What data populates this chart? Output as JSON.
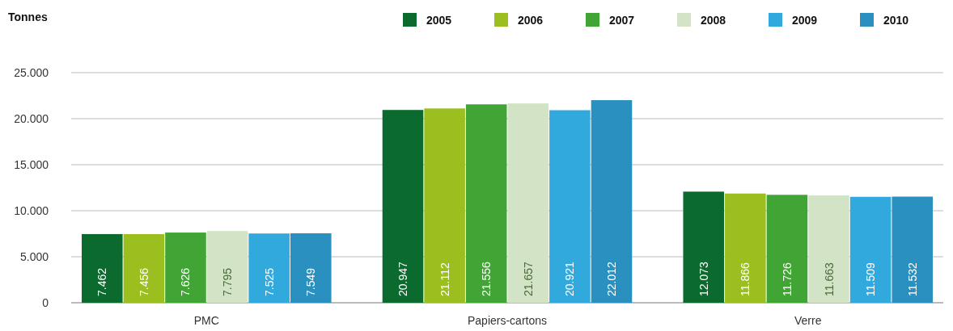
{
  "chart_data": {
    "type": "bar",
    "ylabel": "Tonnes",
    "categories": [
      "PMC",
      "Papiers-cartons",
      "Verre"
    ],
    "series": [
      {
        "name": "2005",
        "color": "#0b6a2d",
        "values": [
          7462,
          20947,
          12073
        ],
        "value_labels": [
          "7.462",
          "20.947",
          "12.073"
        ]
      },
      {
        "name": "2006",
        "color": "#9bbf1f",
        "values": [
          7456,
          21112,
          11866
        ],
        "value_labels": [
          "7.456",
          "21.112",
          "11.866"
        ]
      },
      {
        "name": "2007",
        "color": "#40a535",
        "values": [
          7626,
          21556,
          11726
        ],
        "value_labels": [
          "7.626",
          "21.556",
          "11.726"
        ]
      },
      {
        "name": "2008",
        "color": "#d2e4c5",
        "values": [
          7795,
          21657,
          11663
        ],
        "value_labels": [
          "7.795",
          "21.657",
          "11.663"
        ]
      },
      {
        "name": "2009",
        "color": "#31a9dd",
        "values": [
          7525,
          20921,
          11509
        ],
        "value_labels": [
          "7.525",
          "20.921",
          "11.509"
        ]
      },
      {
        "name": "2010",
        "color": "#2a90bf",
        "values": [
          7549,
          22012,
          11532
        ],
        "value_labels": [
          "7.549",
          "22.012",
          "11.532"
        ]
      }
    ],
    "ylim": [
      0,
      25000
    ],
    "yticks": [
      {
        "value": 0,
        "label": "0"
      },
      {
        "value": 5000,
        "label": "5.000"
      },
      {
        "value": 10000,
        "label": "10.000"
      },
      {
        "value": 15000,
        "label": "15.000"
      },
      {
        "value": 20000,
        "label": "20.000"
      },
      {
        "value": 25000,
        "label": "25.000"
      }
    ],
    "grid": "y",
    "legend": "top right"
  }
}
